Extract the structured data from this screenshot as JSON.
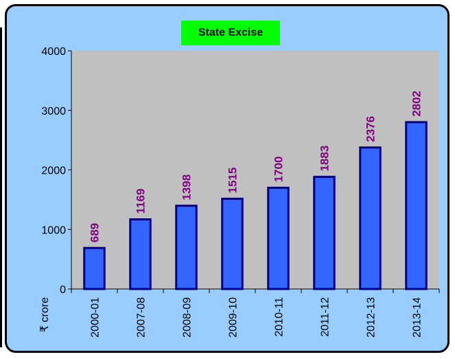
{
  "chart_data": {
    "type": "bar",
    "title": "State Excise",
    "ylabel": "₹ crore",
    "xlabel": "",
    "categories": [
      "2000-01",
      "2007-08",
      "2008-09",
      "2009-10",
      "2010-11",
      "2011-12",
      "2012-13",
      "2013-14"
    ],
    "values": [
      689,
      1169,
      1398,
      1515,
      1700,
      1883,
      2376,
      2802
    ],
    "ylim": [
      0,
      4000
    ],
    "yticks": [
      0,
      1000,
      2000,
      3000,
      4000
    ],
    "grid": false,
    "legend": "none"
  },
  "colors": {
    "background": "#99ccff",
    "plot_area": "#c0c0c0",
    "bar_fill": "#3366ff",
    "bar_stroke": "#000080",
    "data_label": "#800080",
    "title_background": "#00ff00"
  }
}
